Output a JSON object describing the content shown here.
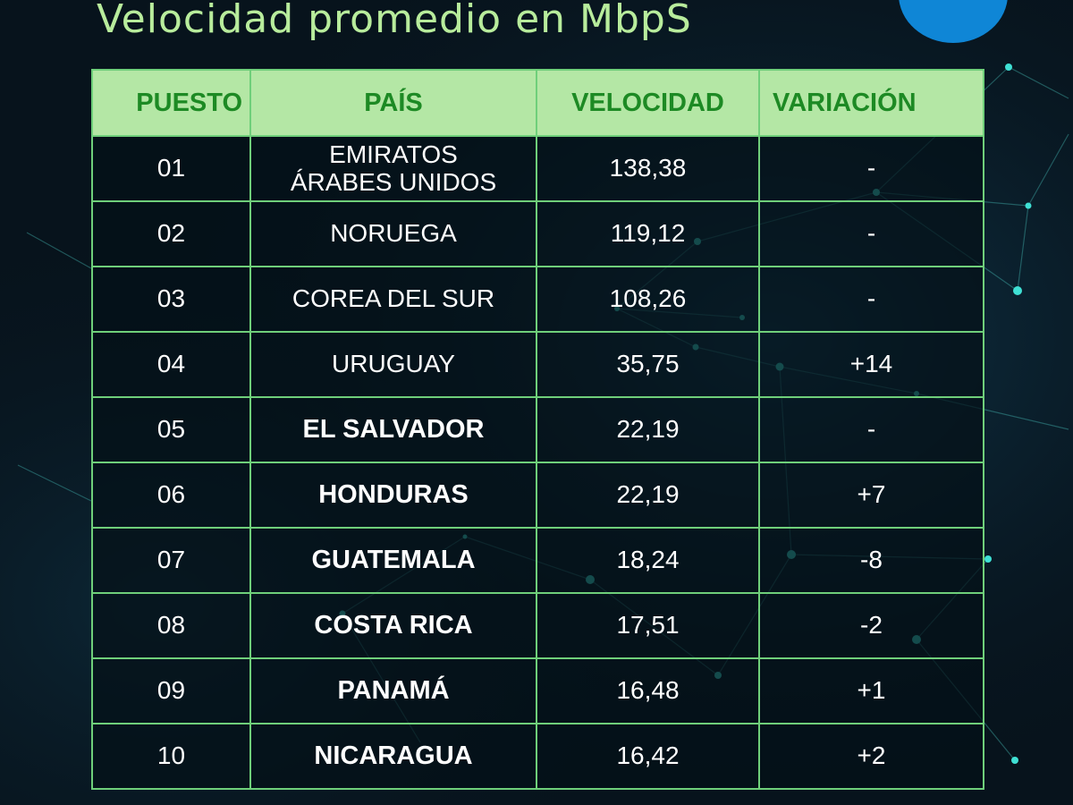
{
  "title": "Velocidad promedio en MbpS",
  "colors": {
    "title": "#b8ec9c",
    "header_bg": "#b4e7a5",
    "header_text": "#1d8a24",
    "border": "#6fcf7a",
    "cell_text": "#ffffff",
    "background": "#07131c",
    "circle": "#0f86d6",
    "network_nodes": "#3fe0d4"
  },
  "table": {
    "columns": {
      "rank": "PUESTO",
      "country": "PAÍS",
      "speed": "VELOCIDAD",
      "change": "VARIACIÓN"
    },
    "rows": [
      {
        "rank": "01",
        "country": "EMIRATOS\nÁRABES UNIDOS",
        "speed": "138,38",
        "change": "-",
        "bold": false
      },
      {
        "rank": "02",
        "country": "NORUEGA",
        "speed": "119,12",
        "change": "-",
        "bold": false
      },
      {
        "rank": "03",
        "country": "COREA DEL SUR",
        "speed": "108,26",
        "change": "-",
        "bold": false
      },
      {
        "rank": "04",
        "country": "URUGUAY",
        "speed": "35,75",
        "change": "+14",
        "bold": false
      },
      {
        "rank": "05",
        "country": "EL SALVADOR",
        "speed": "22,19",
        "change": "-",
        "bold": true
      },
      {
        "rank": "06",
        "country": "HONDURAS",
        "speed": "22,19",
        "change": "+7",
        "bold": true
      },
      {
        "rank": "07",
        "country": "GUATEMALA",
        "speed": "18,24",
        "change": "-8",
        "bold": true
      },
      {
        "rank": "08",
        "country": "COSTA RICA",
        "speed": "17,51",
        "change": "-2",
        "bold": true
      },
      {
        "rank": "09",
        "country": "PANAMÁ",
        "speed": "16,48",
        "change": "+1",
        "bold": true
      },
      {
        "rank": "10",
        "country": "NICARAGUA",
        "speed": "16,42",
        "change": "+2",
        "bold": true
      }
    ]
  }
}
